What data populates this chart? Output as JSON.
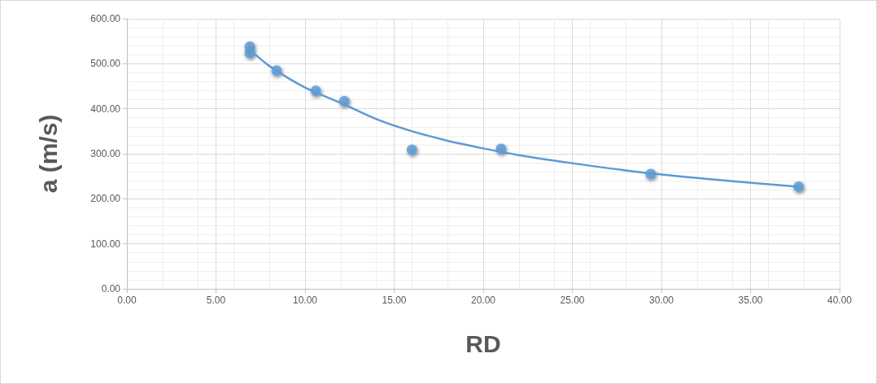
{
  "chart_data": {
    "type": "scatter",
    "xlabel": "RD",
    "ylabel": "a (m/s)",
    "xlim": [
      0,
      40
    ],
    "xticks": [
      {
        "value": 0,
        "label": "0.00"
      },
      {
        "value": 5,
        "label": "5.00"
      },
      {
        "value": 10,
        "label": "10.00"
      },
      {
        "value": 15,
        "label": "15.00"
      },
      {
        "value": 20,
        "label": "20.00"
      },
      {
        "value": 25,
        "label": "25.00"
      },
      {
        "value": 30,
        "label": "30.00"
      },
      {
        "value": 35,
        "label": "35.00"
      },
      {
        "value": 40,
        "label": "40.00"
      }
    ],
    "ylim": [
      0,
      600
    ],
    "yticks": [
      {
        "value": 0,
        "label": "0.00"
      },
      {
        "value": 100,
        "label": "100.00"
      },
      {
        "value": 200,
        "label": "200.00"
      },
      {
        "value": 300,
        "label": "300.00"
      },
      {
        "value": 400,
        "label": "400.00"
      },
      {
        "value": 500,
        "label": "500.00"
      },
      {
        "value": 600,
        "label": "600.00"
      }
    ],
    "grid": true,
    "marker": "circle",
    "series": [
      {
        "color": "#5b9bd5",
        "x": [
          6.9,
          6.9,
          8.4,
          10.6,
          12.2,
          16.0,
          21.0,
          29.4,
          37.7
        ],
        "values": [
          538,
          524,
          485,
          440,
          417,
          309,
          311,
          255,
          227
        ]
      },
      {
        "type": "line",
        "color": "#5b9bd5",
        "marker": "none",
        "line_style": "solid",
        "x": [
          6.9,
          8,
          10,
          12,
          14,
          16,
          18,
          20,
          22,
          25,
          28,
          31,
          34,
          37.7
        ],
        "values": [
          531,
          495,
          447,
          413,
          377,
          350,
          329,
          312,
          297,
          279,
          263,
          250,
          239,
          227
        ]
      }
    ]
  }
}
